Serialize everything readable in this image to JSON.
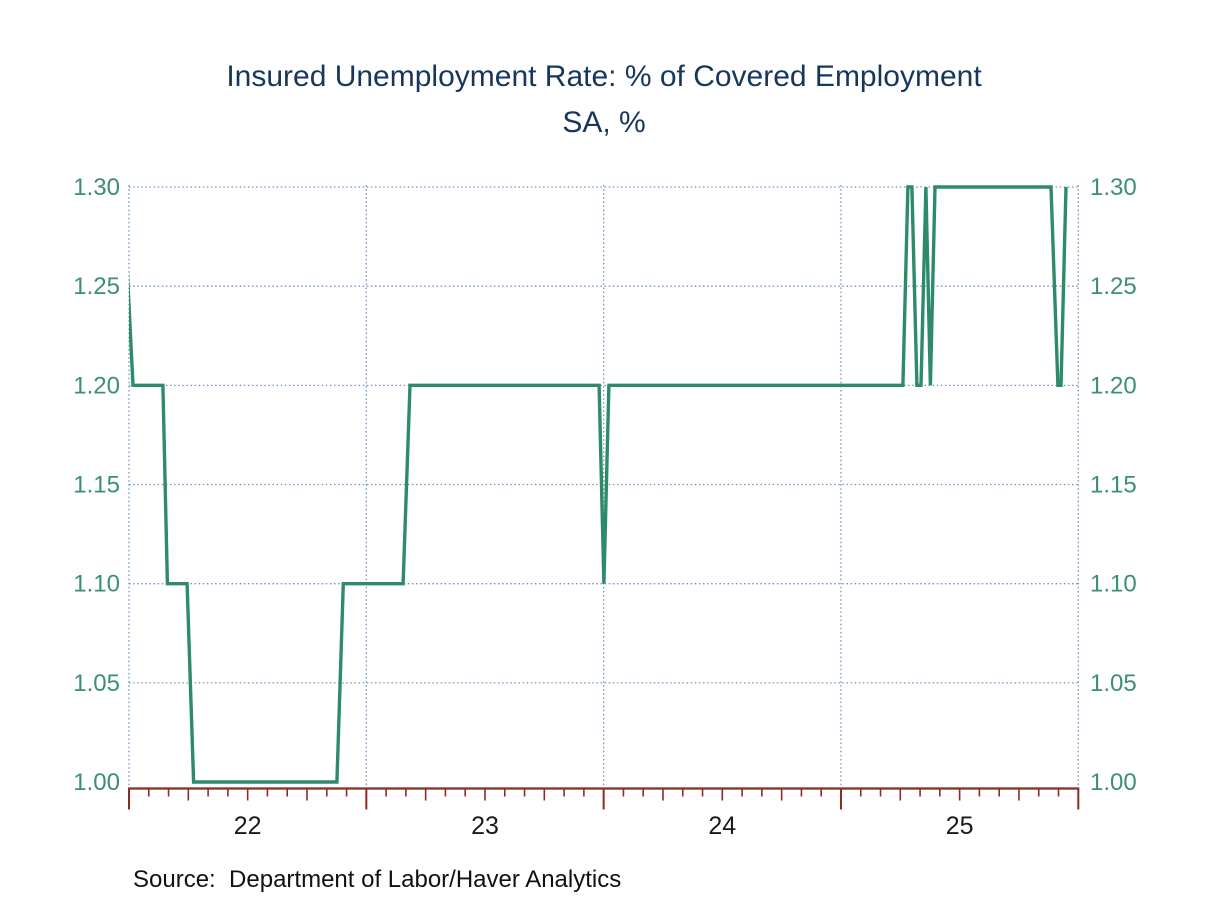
{
  "title": {
    "line1": "Insured Unemployment Rate: % of Covered Employment",
    "line2": "SA, %"
  },
  "source": "Source:  Department of Labor/Haver Analytics",
  "colors": {
    "line_green": "#2E8B69",
    "tick_label_green": "#3C8F72",
    "title_navy": "#16365D",
    "axis_maroon": "#8B2B24",
    "grid_blue": "#4D79B8",
    "x_label_black": "#1A1A1A"
  },
  "chart_data": {
    "type": "line",
    "title": "Insured Unemployment Rate: % of Covered Employment",
    "subtitle": "SA, %",
    "unit": "percent of covered employment, seasonally adjusted",
    "frequency": "weekly",
    "legend": "none",
    "x_axis": {
      "start_year": 2022,
      "end_year": 2026,
      "year_tick_labels": [
        "22",
        "23",
        "24",
        "25"
      ],
      "minor_ticks": "monthly, quarterly slightly longer",
      "grid": "dotted vertical lines at year boundaries"
    },
    "y_axis": {
      "min": 1.0,
      "max": 1.3,
      "tick_step": 0.05,
      "tick_labels": [
        "1.00",
        "1.05",
        "1.10",
        "1.15",
        "1.20",
        "1.25",
        "1.30"
      ],
      "labels_on": "both sides",
      "grid": "dotted horizontal lines at 1.05 through 1.30 (none at 1.00)"
    },
    "series": [
      {
        "name": "Insured Unemployment Rate (SA, %)",
        "points_format": "[decimal_year, percent] step-breakpoints of the weekly series",
        "points": [
          [
            2021.975,
            1.3
          ],
          [
            2022.017,
            1.2
          ],
          [
            2022.143,
            1.2
          ],
          [
            2022.162,
            1.1
          ],
          [
            2022.245,
            1.1
          ],
          [
            2022.272,
            1.0
          ],
          [
            2022.876,
            1.0
          ],
          [
            2022.903,
            1.1
          ],
          [
            2023.155,
            1.1
          ],
          [
            2023.184,
            1.2
          ],
          [
            2023.981,
            1.2
          ],
          [
            2024.001,
            1.1
          ],
          [
            2024.022,
            1.2
          ],
          [
            2025.261,
            1.2
          ],
          [
            2025.282,
            1.3
          ],
          [
            2025.299,
            1.3
          ],
          [
            2025.32,
            1.2
          ],
          [
            2025.337,
            1.2
          ],
          [
            2025.358,
            1.3
          ],
          [
            2025.377,
            1.2
          ],
          [
            2025.396,
            1.3
          ],
          [
            2025.885,
            1.3
          ],
          [
            2025.914,
            1.2
          ],
          [
            2025.927,
            1.2
          ],
          [
            2025.948,
            1.3
          ]
        ]
      }
    ]
  }
}
